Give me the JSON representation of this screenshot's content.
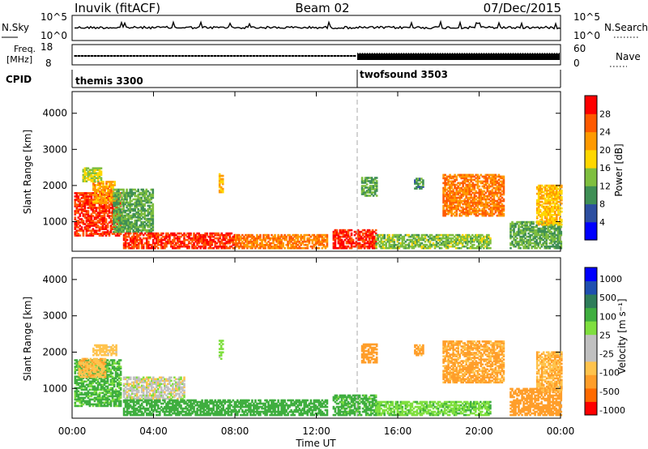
{
  "header": {
    "station": "Inuvik (fitACF)",
    "beam": "Beam 02",
    "date": "07/Dec/2015"
  },
  "top_panels": {
    "nsky_label": "N.Sky",
    "nsky_ticks": [
      "10^5",
      "10^0"
    ],
    "nsearch_label": "N.Search",
    "nsearch_ticks": [
      "10^5",
      "10^0"
    ],
    "freq_label_1": "Freq.",
    "freq_label_2": "[MHz]",
    "freq_ticks": [
      "18",
      "8"
    ],
    "nave_label": "Nave",
    "nave_ticks": [
      "60",
      "0"
    ],
    "cpid_label": "CPID",
    "cpid_modes": [
      {
        "name": "themis 3300",
        "start": "00:00"
      },
      {
        "name": "twofsound 3503",
        "start": "14:00"
      }
    ]
  },
  "colors": {
    "power": [
      "#0000ff",
      "#2d4fa0",
      "#3f8f55",
      "#7fbf3f",
      "#ffd700",
      "#ff9a00",
      "#ff5a00",
      "#ff0000"
    ],
    "velocity": [
      "#ff0000",
      "#ff6a00",
      "#ff9e2a",
      "#ffc34d",
      "#c0c0c0",
      "#c0c0c0",
      "#7fdf3f",
      "#3fae3f",
      "#2e7d5a",
      "#1f4fb0",
      "#0000ff"
    ]
  },
  "chart_data": [
    {
      "type": "heatmap",
      "name": "power",
      "ylabel": "Slant Range [km]",
      "xlabel": "Time UT",
      "xticks": [
        "00:00",
        "04:00",
        "08:00",
        "12:00",
        "16:00",
        "20:00",
        "00:00"
      ],
      "yticks": [
        "1000",
        "2000",
        "3000",
        "4000"
      ],
      "ylim": [
        180,
        4600
      ],
      "colorbar": {
        "label": "Power [dB]",
        "range": [
          0,
          32
        ],
        "ticks": [
          "4",
          "8",
          "12",
          "16",
          "20",
          "24",
          "28"
        ]
      },
      "regions": [
        {
          "t": [
            0.1,
            2.4
          ],
          "r": [
            600,
            1800
          ],
          "v": 28
        },
        {
          "t": [
            1.0,
            2.1
          ],
          "r": [
            1500,
            2100
          ],
          "v": 22
        },
        {
          "t": [
            0.5,
            1.4
          ],
          "r": [
            2100,
            2500
          ],
          "v": 16
        },
        {
          "t": [
            2.0,
            4.0
          ],
          "r": [
            700,
            1900
          ],
          "v": 12
        },
        {
          "t": [
            2.5,
            8.0
          ],
          "r": [
            250,
            700
          ],
          "v": 28
        },
        {
          "t": [
            8.0,
            12.5
          ],
          "r": [
            250,
            650
          ],
          "v": 24
        },
        {
          "t": [
            12.8,
            14.9
          ],
          "r": [
            250,
            750
          ],
          "v": 29
        },
        {
          "t": [
            14.9,
            20.5
          ],
          "r": [
            250,
            650
          ],
          "v": 14
        },
        {
          "t": [
            18.2,
            21.2
          ],
          "r": [
            1150,
            2300
          ],
          "v": 24
        },
        {
          "t": [
            21.5,
            24.0
          ],
          "r": [
            250,
            1000
          ],
          "v": 12
        },
        {
          "t": [
            22.8,
            24.0
          ],
          "r": [
            900,
            2000
          ],
          "v": 20
        },
        {
          "t": [
            7.2,
            7.4
          ],
          "r": [
            1800,
            2300
          ],
          "v": 20
        },
        {
          "t": [
            14.2,
            15.0
          ],
          "r": [
            1700,
            2200
          ],
          "v": 12
        },
        {
          "t": [
            16.8,
            17.2
          ],
          "r": [
            1900,
            2200
          ],
          "v": 10
        }
      ]
    },
    {
      "type": "heatmap",
      "name": "velocity",
      "ylabel": "Slant Range [km]",
      "xlabel": "Time UT",
      "xticks": [
        "00:00",
        "04:00",
        "08:00",
        "12:00",
        "16:00",
        "20:00",
        "00:00"
      ],
      "yticks": [
        "1000",
        "2000",
        "3000",
        "4000"
      ],
      "ylim": [
        180,
        4600
      ],
      "colorbar": {
        "label": "Velocity [m s⁻¹]",
        "ticks": [
          "1000",
          "500",
          "100",
          "25",
          "-25",
          "-100",
          "-500",
          "-1000"
        ]
      },
      "regions": [
        {
          "t": [
            0.1,
            2.4
          ],
          "r": [
            500,
            1800
          ],
          "v": 120
        },
        {
          "t": [
            0.3,
            1.6
          ],
          "r": [
            1300,
            1800
          ],
          "v": -80
        },
        {
          "t": [
            1.0,
            2.2
          ],
          "r": [
            1900,
            2200
          ],
          "v": -60
        },
        {
          "t": [
            2.5,
            5.5
          ],
          "r": [
            700,
            1300
          ],
          "v": 0
        },
        {
          "t": [
            2.5,
            8.0
          ],
          "r": [
            250,
            700
          ],
          "v": 200
        },
        {
          "t": [
            8.0,
            12.5
          ],
          "r": [
            250,
            700
          ],
          "v": 150
        },
        {
          "t": [
            12.8,
            14.9
          ],
          "r": [
            250,
            800
          ],
          "v": 130
        },
        {
          "t": [
            14.9,
            20.5
          ],
          "r": [
            250,
            650
          ],
          "v": 80
        },
        {
          "t": [
            18.2,
            21.2
          ],
          "r": [
            1150,
            2300
          ],
          "v": -120
        },
        {
          "t": [
            21.5,
            24.0
          ],
          "r": [
            250,
            1000
          ],
          "v": -150
        },
        {
          "t": [
            22.8,
            24.0
          ],
          "r": [
            900,
            2000
          ],
          "v": -90
        },
        {
          "t": [
            7.2,
            7.4
          ],
          "r": [
            1800,
            2300
          ],
          "v": 60
        },
        {
          "t": [
            14.2,
            15.0
          ],
          "r": [
            1700,
            2200
          ],
          "v": -200
        },
        {
          "t": [
            16.8,
            17.2
          ],
          "r": [
            1900,
            2200
          ],
          "v": -120
        }
      ]
    }
  ]
}
